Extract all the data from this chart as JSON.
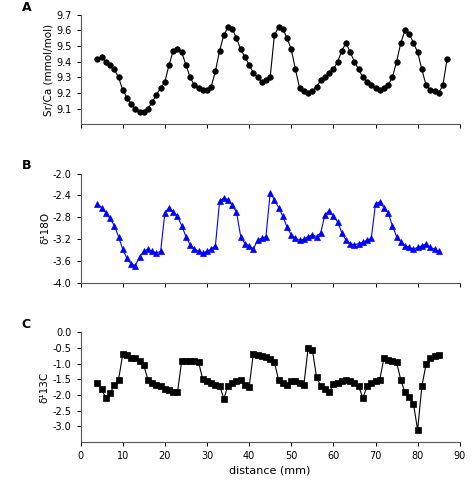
{
  "panel_A": {
    "label": "A",
    "ylabel": "Sr/Ca (mmol/mol)",
    "ylim": [
      9.0,
      9.7
    ],
    "yticks": [
      9.1,
      9.2,
      9.3,
      9.4,
      9.5,
      9.6,
      9.7
    ],
    "ytick_labels": [
      "9.1",
      "9.2",
      "9.3",
      "9.4",
      "9.5",
      "9.6",
      "9.7"
    ],
    "color": "black",
    "marker": "o",
    "ms": 4,
    "lw": 0.8,
    "x": [
      4,
      5,
      6,
      7,
      8,
      9,
      10,
      11,
      12,
      13,
      14,
      15,
      16,
      17,
      18,
      19,
      20,
      21,
      22,
      23,
      24,
      25,
      26,
      27,
      28,
      29,
      30,
      31,
      32,
      33,
      34,
      35,
      36,
      37,
      38,
      39,
      40,
      41,
      42,
      43,
      44,
      45,
      46,
      47,
      48,
      49,
      50,
      51,
      52,
      53,
      54,
      55,
      56,
      57,
      58,
      59,
      60,
      61,
      62,
      63,
      64,
      65,
      66,
      67,
      68,
      69,
      70,
      71,
      72,
      73,
      74,
      75,
      76,
      77,
      78,
      79,
      80,
      81,
      82,
      83,
      84,
      85,
      86,
      87
    ],
    "y": [
      9.42,
      9.43,
      9.4,
      9.38,
      9.35,
      9.3,
      9.22,
      9.17,
      9.13,
      9.1,
      9.08,
      9.08,
      9.1,
      9.14,
      9.19,
      9.23,
      9.27,
      9.38,
      9.47,
      9.48,
      9.46,
      9.38,
      9.3,
      9.25,
      9.23,
      9.22,
      9.22,
      9.24,
      9.34,
      9.47,
      9.57,
      9.62,
      9.61,
      9.55,
      9.48,
      9.43,
      9.38,
      9.33,
      9.3,
      9.27,
      9.28,
      9.3,
      9.57,
      9.62,
      9.61,
      9.55,
      9.48,
      9.35,
      9.23,
      9.21,
      9.2,
      9.21,
      9.24,
      9.28,
      9.3,
      9.33,
      9.35,
      9.4,
      9.47,
      9.52,
      9.46,
      9.4,
      9.35,
      9.3,
      9.27,
      9.25,
      9.23,
      9.22,
      9.23,
      9.25,
      9.3,
      9.4,
      9.52,
      9.6,
      9.58,
      9.52,
      9.46,
      9.35,
      9.25,
      9.22,
      9.21,
      9.2,
      9.25,
      9.42
    ]
  },
  "panel_A_ylim_bottom_label": "0",
  "panel_B": {
    "label": "B",
    "ylabel": "δ¹18O",
    "ylim": [
      -4.0,
      -2.0
    ],
    "yticks": [
      -4.0,
      -3.6,
      -3.2,
      -2.8,
      -2.4,
      -2.0
    ],
    "ytick_labels": [
      "-4.0",
      "-3.6",
      "-3.2",
      "-2.8",
      "-2.4",
      "-2.0"
    ],
    "color": "blue",
    "marker": "^",
    "ms": 4,
    "lw": 0.8,
    "x": [
      4,
      5,
      6,
      7,
      8,
      9,
      10,
      11,
      12,
      13,
      14,
      15,
      16,
      17,
      18,
      19,
      20,
      21,
      22,
      23,
      24,
      25,
      26,
      27,
      28,
      29,
      30,
      31,
      32,
      33,
      34,
      35,
      36,
      37,
      38,
      39,
      40,
      41,
      42,
      43,
      44,
      45,
      46,
      47,
      48,
      49,
      50,
      51,
      52,
      53,
      54,
      55,
      56,
      57,
      58,
      59,
      60,
      61,
      62,
      63,
      64,
      65,
      66,
      67,
      68,
      69,
      70,
      71,
      72,
      73,
      74,
      75,
      76,
      77,
      78,
      79,
      80,
      81,
      82,
      83,
      84,
      85
    ],
    "y": [
      -2.55,
      -2.62,
      -2.72,
      -2.82,
      -2.95,
      -3.15,
      -3.38,
      -3.55,
      -3.65,
      -3.68,
      -3.52,
      -3.42,
      -3.38,
      -3.42,
      -3.45,
      -3.42,
      -2.72,
      -2.62,
      -2.7,
      -2.78,
      -2.95,
      -3.15,
      -3.3,
      -3.38,
      -3.42,
      -3.45,
      -3.42,
      -3.38,
      -3.32,
      -2.5,
      -2.45,
      -2.48,
      -2.58,
      -2.7,
      -3.15,
      -3.28,
      -3.32,
      -3.38,
      -3.22,
      -3.18,
      -3.15,
      -2.35,
      -2.48,
      -2.62,
      -2.78,
      -2.98,
      -3.12,
      -3.18,
      -3.22,
      -3.2,
      -3.15,
      -3.12,
      -3.15,
      -3.08,
      -2.75,
      -2.68,
      -2.78,
      -2.88,
      -3.08,
      -3.22,
      -3.28,
      -3.3,
      -3.28,
      -3.25,
      -3.22,
      -3.18,
      -2.55,
      -2.52,
      -2.62,
      -2.72,
      -2.95,
      -3.15,
      -3.25,
      -3.32,
      -3.35,
      -3.38,
      -3.35,
      -3.32,
      -3.28,
      -3.35,
      -3.38,
      -3.42
    ]
  },
  "panel_C": {
    "label": "C",
    "ylabel": "δ¹13C",
    "ylim": [
      -3.5,
      0.0
    ],
    "yticks": [
      -3.0,
      -2.5,
      -2.0,
      -1.5,
      -1.0,
      -0.5,
      0.0
    ],
    "ytick_labels": [
      "-3.0",
      "-2.5",
      "-2.0",
      "-1.5",
      "-1.0",
      "-0.5",
      "0.0"
    ],
    "color": "black",
    "marker": "s",
    "ms": 4,
    "lw": 0.8,
    "x": [
      4,
      5,
      6,
      7,
      8,
      9,
      10,
      11,
      12,
      13,
      14,
      15,
      16,
      17,
      18,
      19,
      20,
      21,
      22,
      23,
      24,
      25,
      26,
      27,
      28,
      29,
      30,
      31,
      32,
      33,
      34,
      35,
      36,
      37,
      38,
      39,
      40,
      41,
      42,
      43,
      44,
      45,
      46,
      47,
      48,
      49,
      50,
      51,
      52,
      53,
      54,
      55,
      56,
      57,
      58,
      59,
      60,
      61,
      62,
      63,
      64,
      65,
      66,
      67,
      68,
      69,
      70,
      71,
      72,
      73,
      74,
      75,
      76,
      77,
      78,
      79,
      80,
      81,
      82,
      83,
      84,
      85
    ],
    "y": [
      -1.62,
      -1.82,
      -2.1,
      -1.95,
      -1.68,
      -1.52,
      -0.7,
      -0.72,
      -0.82,
      -0.83,
      -0.9,
      -1.05,
      -1.52,
      -1.62,
      -1.68,
      -1.72,
      -1.8,
      -1.85,
      -1.9,
      -1.92,
      -0.9,
      -0.92,
      -0.93,
      -0.93,
      -0.95,
      -1.5,
      -1.55,
      -1.62,
      -1.68,
      -1.7,
      -2.12,
      -1.7,
      -1.62,
      -1.55,
      -1.52,
      -1.68,
      -1.75,
      -0.68,
      -0.72,
      -0.75,
      -0.78,
      -0.85,
      -0.95,
      -1.52,
      -1.62,
      -1.68,
      -1.55,
      -1.56,
      -1.62,
      -1.68,
      -0.5,
      -0.55,
      -1.42,
      -1.72,
      -1.82,
      -1.92,
      -1.65,
      -1.62,
      -1.55,
      -1.52,
      -1.55,
      -1.62,
      -1.72,
      -2.1,
      -1.72,
      -1.62,
      -1.55,
      -1.52,
      -0.82,
      -0.88,
      -0.92,
      -0.95,
      -1.52,
      -1.92,
      -2.08,
      -2.28,
      -3.12,
      -1.72,
      -1.02,
      -0.82,
      -0.75,
      -0.72
    ]
  },
  "xlabel": "distance (mm)",
  "xlim": [
    0,
    90
  ],
  "xticks": [
    0,
    10,
    20,
    30,
    40,
    50,
    60,
    70,
    80,
    90
  ]
}
